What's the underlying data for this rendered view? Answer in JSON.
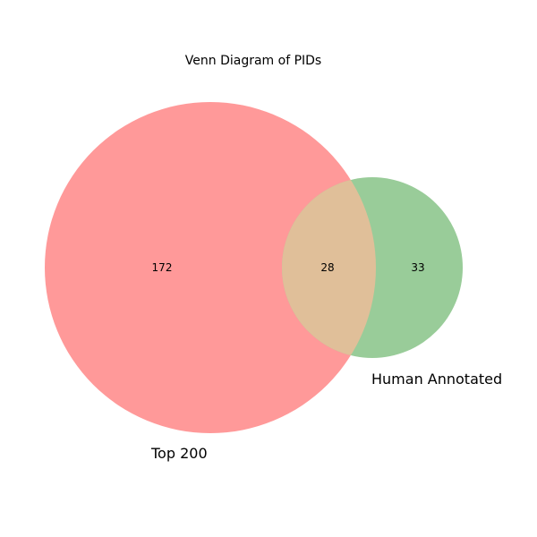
{
  "title": "Venn Diagram of PIDs",
  "sets": [
    {
      "name": "Top 200",
      "only_count": "172",
      "color": "#ff9999"
    },
    {
      "name": "Human Annotated",
      "only_count": "33",
      "color": "#99cc99"
    }
  ],
  "intersection": {
    "count": "28",
    "color": "#e0bf99"
  }
}
